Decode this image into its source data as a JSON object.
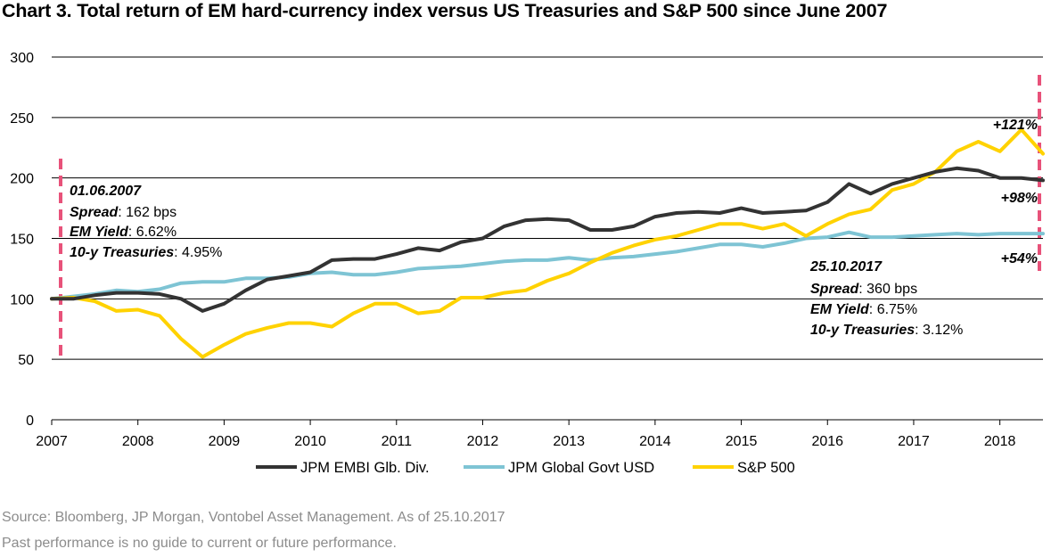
{
  "title": "Chart 3. Total return of EM hard-currency index versus US Treasuries and S&P 500 since June 2007",
  "footer": {
    "source": "Source: Bloomberg, JP Morgan, Vontobel Asset Management. As of 25.10.2017",
    "disclaimer": "Past performance is no guide to current or future performance."
  },
  "colors": {
    "embi": "#333333",
    "govt": "#7ec4d4",
    "sp500": "#ffd200",
    "marker": "#e8527a",
    "grid": "#000000"
  },
  "chart_data": {
    "type": "line",
    "title": "Chart 3. Total return of EM hard-currency index versus US Treasuries and S&P 500 since June 2007",
    "xlabel": "",
    "ylabel": "",
    "xlim": [
      2007.0,
      2018.5
    ],
    "ylim": [
      0,
      300
    ],
    "x_ticks": [
      "2007",
      "2008",
      "2009",
      "2010",
      "2011",
      "2012",
      "2013",
      "2014",
      "2015",
      "2016",
      "2017",
      "2018"
    ],
    "y_ticks": [
      "0",
      "50",
      "100",
      "150",
      "200",
      "250",
      "300"
    ],
    "grid": true,
    "legend_position": "bottom",
    "x": [
      2007.0,
      2007.25,
      2007.5,
      2007.75,
      2008.0,
      2008.25,
      2008.5,
      2008.75,
      2009.0,
      2009.25,
      2009.5,
      2009.75,
      2010.0,
      2010.25,
      2010.5,
      2010.75,
      2011.0,
      2011.25,
      2011.5,
      2011.75,
      2012.0,
      2012.25,
      2012.5,
      2012.75,
      2013.0,
      2013.25,
      2013.5,
      2013.75,
      2014.0,
      2014.25,
      2014.5,
      2014.75,
      2015.0,
      2015.25,
      2015.5,
      2015.75,
      2016.0,
      2016.25,
      2016.5,
      2016.75,
      2017.0,
      2017.25,
      2017.5,
      2017.75,
      2018.0,
      2018.25,
      2018.5
    ],
    "series": [
      {
        "name": "JPM EMBI Glb. Div.",
        "color": "#333333",
        "values": [
          100,
          100,
          103,
          105,
          105,
          104,
          100,
          90,
          96,
          107,
          116,
          119,
          122,
          132,
          133,
          133,
          137,
          142,
          140,
          147,
          150,
          160,
          165,
          166,
          165,
          157,
          157,
          160,
          168,
          171,
          172,
          171,
          175,
          171,
          172,
          173,
          180,
          195,
          187,
          195,
          200,
          205,
          208,
          206,
          200,
          200,
          198
        ]
      },
      {
        "name": "JPM Global Govt USD",
        "color": "#7ec4d4",
        "values": [
          100,
          102,
          104,
          107,
          106,
          108,
          113,
          114,
          114,
          117,
          117,
          118,
          121,
          122,
          120,
          120,
          122,
          125,
          126,
          127,
          129,
          131,
          132,
          132,
          134,
          132,
          134,
          135,
          137,
          139,
          142,
          145,
          145,
          143,
          146,
          150,
          151,
          155,
          151,
          151,
          152,
          153,
          154,
          153,
          154,
          154,
          154
        ]
      },
      {
        "name": "S&P 500",
        "color": "#ffd200",
        "values": [
          100,
          101,
          98,
          90,
          91,
          86,
          67,
          52,
          62,
          71,
          76,
          80,
          80,
          77,
          88,
          96,
          96,
          88,
          90,
          101,
          101,
          105,
          107,
          115,
          121,
          130,
          138,
          144,
          149,
          152,
          157,
          162,
          162,
          158,
          162,
          152,
          162,
          170,
          174,
          190,
          195,
          205,
          222,
          230,
          222,
          240,
          220
        ]
      }
    ],
    "annotations": {
      "start": {
        "date": "01.06.2007",
        "spread_label": "Spread",
        "spread_value": ": 162 bps",
        "yield_label": "EM Yield",
        "yield_value": ": 6.62%",
        "treas_label": "10-y Treasuries",
        "treas_value": ": 4.95%"
      },
      "end": {
        "date": "25.10.2017",
        "spread_label": "Spread",
        "spread_value": ": 360 bps",
        "yield_label": "EM Yield",
        "yield_value": ": 6.75%",
        "treas_label": "10-y Treasuries",
        "treas_value": ": 3.12%"
      },
      "returns": [
        "+121%",
        "+98%",
        "+54%"
      ]
    }
  }
}
